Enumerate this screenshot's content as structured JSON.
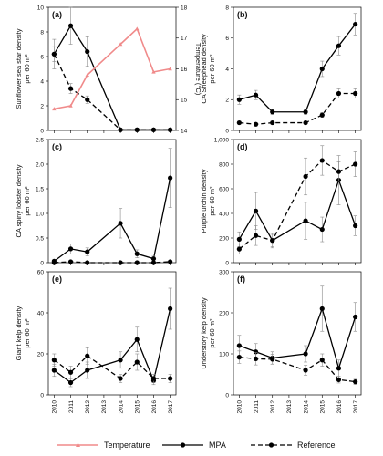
{
  "chart_data": [
    {
      "type": "line",
      "panel_label": "(a)",
      "ylabel_lines": [
        "Sunflower sea star density",
        "per 60 m²"
      ],
      "ylim": [
        0,
        10
      ],
      "yticks": [
        0,
        2,
        4,
        6,
        8,
        10
      ],
      "secondary_axis": {
        "ylabel": "Temperature (°C)",
        "ylim": [
          14,
          18
        ],
        "yticks": [
          14,
          15,
          16,
          17,
          18
        ]
      },
      "x": [
        2010,
        2011,
        2012,
        2014,
        2015,
        2016,
        2017
      ],
      "series": [
        {
          "name": "MPA",
          "style": "solid",
          "values": [
            6.2,
            8.5,
            6.4,
            0.05,
            0.05,
            0.05,
            0.05
          ],
          "err": [
            1.2,
            1.5,
            1.2,
            0.05,
            0.05,
            0.05,
            0.05
          ]
        },
        {
          "name": "Reference",
          "style": "dashed",
          "values": [
            6.2,
            3.4,
            2.5,
            0.05,
            0.05,
            0.05,
            0.05
          ],
          "err": [
            0.6,
            0.4,
            0.3,
            0.05,
            0.05,
            0.05,
            0.05
          ]
        },
        {
          "name": "Temperature",
          "style": "temperature",
          "axis": "secondary",
          "values": [
            14.7,
            14.8,
            15.8,
            16.8,
            17.3,
            15.9,
            16.0
          ]
        }
      ]
    },
    {
      "type": "line",
      "panel_label": "(b)",
      "ylabel_lines": [
        "CA Sheephead density",
        "per 60 m²"
      ],
      "ylim": [
        0,
        8
      ],
      "yticks": [
        0,
        2,
        4,
        6,
        8
      ],
      "x": [
        2010,
        2011,
        2012,
        2014,
        2015,
        2016,
        2017
      ],
      "series": [
        {
          "name": "MPA",
          "style": "solid",
          "values": [
            2.0,
            2.3,
            1.2,
            1.2,
            4.0,
            5.5,
            6.9
          ],
          "err": [
            0.3,
            0.3,
            0.15,
            0.15,
            0.5,
            0.6,
            0.7
          ]
        },
        {
          "name": "Reference",
          "style": "dashed",
          "values": [
            0.5,
            0.4,
            0.5,
            0.5,
            1.0,
            2.4,
            2.4
          ],
          "err": [
            0.1,
            0.1,
            0.1,
            0.1,
            0.15,
            0.3,
            0.3
          ]
        }
      ]
    },
    {
      "type": "line",
      "panel_label": "(c)",
      "ylabel_lines": [
        "CA spiny lobster density",
        "per 60 m²"
      ],
      "ylim": [
        0,
        2.5
      ],
      "yticks": [
        0,
        0.5,
        1.0,
        1.5,
        2.0,
        2.5
      ],
      "ytick_labels": [
        "0",
        "0.5",
        "1.0",
        "1.5",
        "2.0",
        "2.5"
      ],
      "x": [
        2010,
        2011,
        2012,
        2014,
        2015,
        2016,
        2017
      ],
      "series": [
        {
          "name": "MPA",
          "style": "solid",
          "values": [
            0.03,
            0.28,
            0.22,
            0.8,
            0.18,
            0.08,
            1.72
          ],
          "err": [
            0.02,
            0.1,
            0.08,
            0.3,
            0.08,
            0.05,
            0.6
          ]
        },
        {
          "name": "Reference",
          "style": "dashed",
          "values": [
            0.0,
            0.02,
            0.0,
            0.0,
            0.0,
            0.0,
            0.02
          ],
          "err": [
            0.01,
            0.01,
            0.01,
            0.01,
            0.01,
            0.01,
            0.01
          ]
        }
      ]
    },
    {
      "type": "line",
      "panel_label": "(d)",
      "ylabel_lines": [
        "Purple urchin density",
        "per 60 m²"
      ],
      "ylim": [
        0,
        1000
      ],
      "yticks": [
        0,
        200,
        400,
        600,
        800,
        1000
      ],
      "ytick_labels": [
        "0",
        "200",
        "400",
        "600",
        "800",
        "1,000"
      ],
      "x": [
        2010,
        2011,
        2012,
        2014,
        2015,
        2016,
        2017
      ],
      "series": [
        {
          "name": "MPA",
          "style": "solid",
          "values": [
            190,
            420,
            180,
            340,
            270,
            670,
            300
          ],
          "err": [
            60,
            150,
            50,
            150,
            100,
            200,
            80
          ]
        },
        {
          "name": "Reference",
          "style": "dashed",
          "values": [
            110,
            220,
            180,
            700,
            830,
            740,
            800
          ],
          "err": [
            40,
            80,
            60,
            150,
            120,
            80,
            100
          ]
        }
      ]
    },
    {
      "type": "line",
      "panel_label": "(e)",
      "ylabel_lines": [
        "Giant kelp density",
        "per 60 m²"
      ],
      "ylim": [
        0,
        60
      ],
      "yticks": [
        0,
        20,
        40,
        60
      ],
      "x": [
        2010,
        2011,
        2012,
        2014,
        2015,
        2016,
        2017
      ],
      "series": [
        {
          "name": "MPA",
          "style": "solid",
          "values": [
            12,
            6,
            12,
            17,
            27,
            7,
            42
          ],
          "err": [
            3,
            2,
            4,
            4,
            6,
            2,
            10
          ]
        },
        {
          "name": "Reference",
          "style": "dashed",
          "values": [
            17,
            11,
            19,
            8,
            16,
            8,
            8
          ],
          "err": [
            3,
            3,
            4,
            2,
            4,
            2,
            2
          ]
        }
      ]
    },
    {
      "type": "line",
      "panel_label": "(f)",
      "ylabel_lines": [
        "Understory kelp density",
        "per 60 m²"
      ],
      "ylim": [
        0,
        300
      ],
      "yticks": [
        0,
        100,
        200,
        300
      ],
      "x": [
        2010,
        2011,
        2012,
        2014,
        2015,
        2016,
        2017
      ],
      "series": [
        {
          "name": "MPA",
          "style": "solid",
          "values": [
            120,
            105,
            90,
            100,
            210,
            65,
            190
          ],
          "err": [
            25,
            20,
            15,
            20,
            55,
            20,
            35
          ]
        },
        {
          "name": "Reference",
          "style": "dashed",
          "values": [
            92,
            88,
            87,
            60,
            85,
            37,
            32
          ],
          "err": [
            15,
            15,
            12,
            12,
            15,
            8,
            6
          ]
        }
      ]
    }
  ],
  "xticks": [
    2010,
    2011,
    2012,
    2013,
    2014,
    2015,
    2016,
    2017
  ],
  "legend": {
    "placement": "bottom",
    "entries": [
      {
        "key": "temperature",
        "label": "Temperature"
      },
      {
        "key": "mpa",
        "label": "MPA"
      },
      {
        "key": "reference",
        "label": "Reference"
      }
    ]
  },
  "colors": {
    "line": "#000000",
    "temperature": "#f08a8a"
  }
}
